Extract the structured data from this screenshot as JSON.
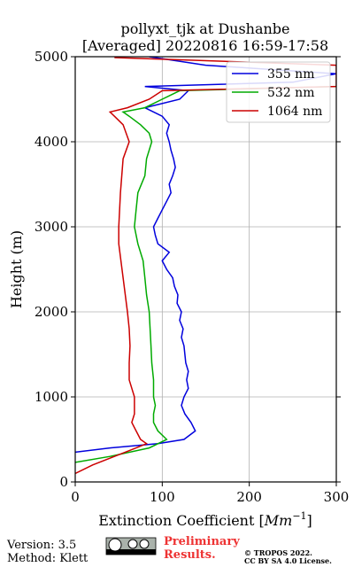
{
  "chart_data": {
    "type": "line",
    "title": [
      "pollyxt_tjk at Dushanbe",
      "[Averaged] 20220816 16:59-17:58"
    ],
    "xlabel": [
      "Extinction Coefficient [",
      "Mm",
      "−1",
      "]"
    ],
    "ylabel": "Height (m)",
    "xlim": [
      0,
      300
    ],
    "xticks": [
      0,
      100,
      200,
      300
    ],
    "ylim": [
      0,
      5000
    ],
    "yticks": [
      0,
      1000,
      2000,
      3000,
      4000,
      5000
    ],
    "grid": true,
    "legend": "upper right",
    "series": [
      {
        "name": "355 nm",
        "color": "#0000dd",
        "y": [
          350,
          400,
          450,
          500,
          600,
          700,
          800,
          900,
          1000,
          1100,
          1200,
          1300,
          1400,
          1500,
          1600,
          1700,
          1800,
          1900,
          2000,
          2100,
          2200,
          2300,
          2400,
          2500,
          2600,
          2700,
          2800,
          2900,
          3000,
          3100,
          3200,
          3300,
          3400,
          3500,
          3600,
          3700,
          3800,
          3900,
          4000,
          4100,
          4200,
          4300,
          4400,
          4500,
          4600,
          4650,
          4700,
          4800,
          4900,
          5000
        ],
        "values": [
          0,
          40,
          95,
          125,
          138,
          133,
          126,
          122,
          125,
          130,
          128,
          130,
          127,
          126,
          125,
          122,
          124,
          120,
          122,
          117,
          118,
          114,
          112,
          105,
          100,
          108,
          95,
          92,
          90,
          95,
          100,
          105,
          110,
          108,
          112,
          115,
          113,
          110,
          108,
          105,
          108,
          100,
          80,
          120,
          130,
          80,
          250,
          300,
          150,
          85
        ]
      },
      {
        "name": "532 nm",
        "color": "#00aa00",
        "y": [
          230,
          300,
          400,
          500,
          600,
          700,
          800,
          900,
          1000,
          1200,
          1400,
          1600,
          1800,
          2000,
          2200,
          2400,
          2600,
          2800,
          3000,
          3200,
          3400,
          3600,
          3800,
          4000,
          4100,
          4200,
          4300,
          4350,
          4400,
          4500,
          4550,
          4600,
          4650
        ],
        "values": [
          0,
          40,
          85,
          105,
          95,
          90,
          90,
          92,
          90,
          90,
          88,
          87,
          86,
          85,
          82,
          80,
          78,
          72,
          68,
          70,
          72,
          80,
          82,
          88,
          85,
          75,
          62,
          55,
          80,
          100,
          110,
          120,
          300
        ]
      },
      {
        "name": "1064 nm",
        "color": "#cc0000",
        "y": [
          100,
          200,
          300,
          400,
          450,
          500,
          600,
          700,
          800,
          1000,
          1200,
          1400,
          1600,
          1800,
          2000,
          2400,
          2800,
          3000,
          3400,
          3800,
          4000,
          4200,
          4300,
          4350,
          4400,
          4500,
          4600,
          4650,
          4900,
          4990
        ],
        "values": [
          0,
          20,
          45,
          70,
          82,
          75,
          70,
          65,
          68,
          68,
          62,
          62,
          63,
          62,
          60,
          55,
          50,
          50,
          52,
          55,
          62,
          55,
          45,
          40,
          60,
          85,
          100,
          300,
          300,
          45
        ]
      }
    ]
  },
  "footer": {
    "version": "Version: 3.5",
    "method": "Method: Klett",
    "preliminary": [
      "Preliminary",
      "Results."
    ],
    "copyright": [
      "© TROPOS 2022.",
      "CC BY SA 4.0 License."
    ]
  }
}
